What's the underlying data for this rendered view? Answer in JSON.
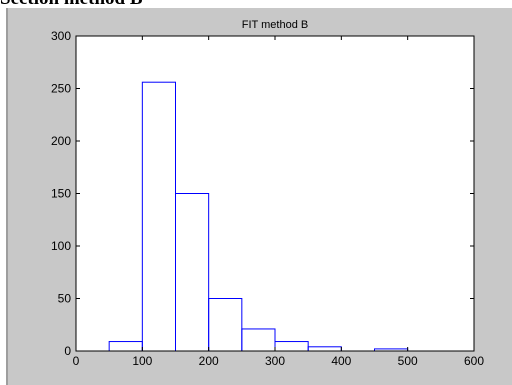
{
  "page": {
    "heading": "Section method B"
  },
  "colors": {
    "figure_background": "#c8c8c8",
    "axes_background": "#ffffff",
    "bar_edge": "#0000ff",
    "axis": "#000000",
    "left_rule": "#9e9e9e"
  },
  "chart_data": {
    "type": "bar",
    "title": "FIT method B",
    "xlabel": "",
    "ylabel": "",
    "xlim": [
      0,
      600
    ],
    "ylim": [
      0,
      300
    ],
    "xticks": [
      0,
      100,
      200,
      300,
      400,
      500,
      600
    ],
    "yticks": [
      0,
      50,
      100,
      150,
      200,
      250,
      300
    ],
    "bin_width": 50,
    "bins": [
      {
        "start": 50,
        "end": 100,
        "count": 9
      },
      {
        "start": 100,
        "end": 150,
        "count": 256
      },
      {
        "start": 150,
        "end": 200,
        "count": 150
      },
      {
        "start": 200,
        "end": 250,
        "count": 50
      },
      {
        "start": 250,
        "end": 300,
        "count": 21
      },
      {
        "start": 300,
        "end": 350,
        "count": 9
      },
      {
        "start": 350,
        "end": 400,
        "count": 4
      },
      {
        "start": 400,
        "end": 450,
        "count": 0
      },
      {
        "start": 450,
        "end": 500,
        "count": 2
      },
      {
        "start": 500,
        "end": 550,
        "count": 0
      }
    ],
    "grid": false,
    "legend": "none"
  }
}
